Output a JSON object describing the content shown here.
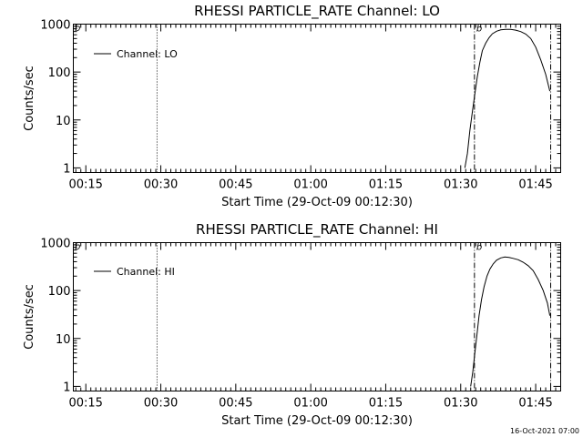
{
  "chart_data": [
    {
      "type": "line",
      "title": "RHESSI PARTICLE_RATE Channel: LO",
      "xlabel": "Start Time (29-Oct-09 00:12:30)",
      "ylabel": "Counts/sec",
      "yscale": "log",
      "xlim": [
        "00:12:30",
        "01:50:00"
      ],
      "ylim": [
        0.8,
        1000
      ],
      "xticks": [
        "00:15",
        "00:30",
        "00:45",
        "01:00",
        "01:15",
        "01:30",
        "01:45"
      ],
      "yticks": [
        "1",
        "10",
        "100",
        "1000"
      ],
      "legend": {
        "position": "top-left",
        "entries": [
          "Channel: LO"
        ]
      },
      "series": [
        {
          "name": "Channel: LO",
          "x": [
            "01:30:50",
            "01:31:20",
            "01:31:50",
            "01:32:20",
            "01:32:50",
            "01:33:20",
            "01:33:50",
            "01:34:20",
            "01:35:00",
            "01:35:40",
            "01:36:20",
            "01:37:10",
            "01:38:00",
            "01:39:00",
            "01:40:00",
            "01:41:00",
            "01:42:00",
            "01:43:00",
            "01:44:00",
            "01:45:00",
            "01:46:00",
            "01:47:00",
            "01:47:50"
          ],
          "y": [
            1,
            2,
            6,
            15,
            35,
            80,
            160,
            280,
            400,
            520,
            630,
            710,
            760,
            780,
            775,
            750,
            700,
            620,
            500,
            330,
            180,
            90,
            40
          ]
        }
      ],
      "markers": [
        {
          "style": "dotted",
          "x": "00:29:15",
          "label": ""
        },
        {
          "style": "dash-dot",
          "x": "01:32:45",
          "label": "b"
        },
        {
          "style": "dash-dot",
          "x": "01:48:00",
          "label": ""
        }
      ],
      "corner_label": "b"
    },
    {
      "type": "line",
      "title": "RHESSI PARTICLE_RATE Channel: HI",
      "xlabel": "Start Time (29-Oct-09 00:12:30)",
      "ylabel": "Counts/sec",
      "yscale": "log",
      "xlim": [
        "00:12:30",
        "01:50:00"
      ],
      "ylim": [
        0.8,
        1000
      ],
      "xticks": [
        "00:15",
        "00:30",
        "00:45",
        "01:00",
        "01:15",
        "01:30",
        "01:45"
      ],
      "yticks": [
        "1",
        "10",
        "100",
        "1000"
      ],
      "legend": {
        "position": "top-left",
        "entries": [
          "Channel: HI"
        ]
      },
      "series": [
        {
          "name": "Channel: HI",
          "x": [
            "01:32:00",
            "01:32:25",
            "01:32:50",
            "01:33:15",
            "01:33:40",
            "01:34:10",
            "01:34:40",
            "01:35:15",
            "01:35:50",
            "01:36:30",
            "01:37:10",
            "01:38:00",
            "01:38:50",
            "01:39:40",
            "01:40:30",
            "01:41:30",
            "01:42:30",
            "01:43:30",
            "01:44:30",
            "01:45:30",
            "01:46:30",
            "01:47:20",
            "01:47:50"
          ],
          "y": [
            1,
            2,
            5,
            12,
            30,
            65,
            120,
            200,
            280,
            360,
            430,
            480,
            500,
            490,
            470,
            440,
            390,
            330,
            260,
            170,
            100,
            55,
            30
          ]
        }
      ],
      "markers": [
        {
          "style": "dotted",
          "x": "00:29:15",
          "label": ""
        },
        {
          "style": "dash-dot",
          "x": "01:32:45",
          "label": "b"
        },
        {
          "style": "dash-dot",
          "x": "01:48:00",
          "label": ""
        }
      ],
      "corner_label": "b"
    }
  ],
  "timestamp": "16-Oct-2021 07:00"
}
